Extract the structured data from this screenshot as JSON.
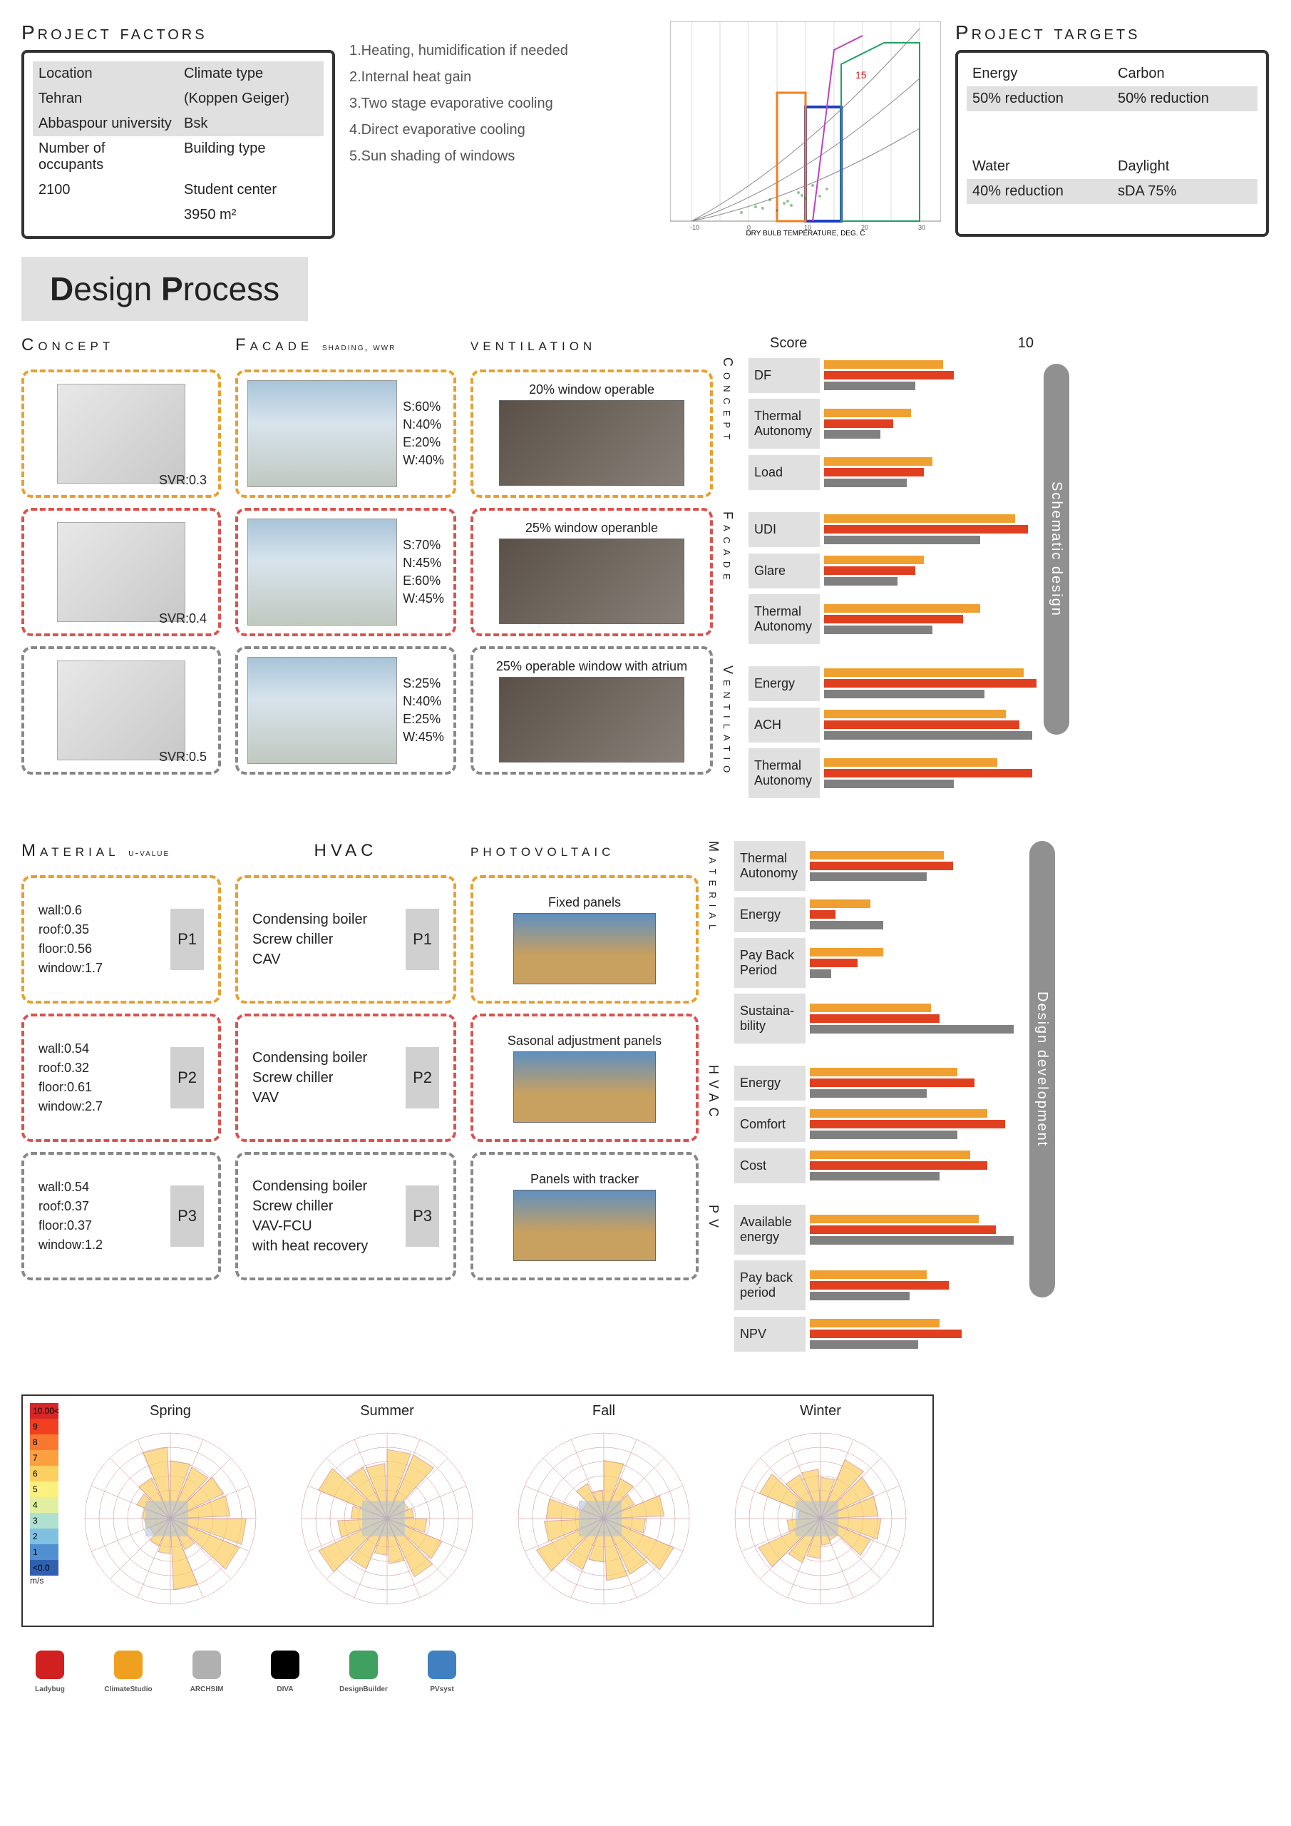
{
  "project_factors": {
    "title": "Project factors",
    "rows": {
      "location_h": "Location",
      "climate_h": "Climate type",
      "location_v": "Tehran",
      "climate_v": "(Koppen Geiger)",
      "loc2": "Abbaspour university",
      "clim2": "Bsk",
      "occ_h": "Number of occupants",
      "btype_h": "Building type",
      "occ_v": "2100",
      "btype_v": "Student center",
      "area": "3950 m²"
    }
  },
  "strategies": [
    "1.Heating, humidification if needed",
    "2.Internal heat gain",
    "3.Two stage evaporative cooling",
    "4.Direct evaporative cooling",
    "5.Sun shading of windows"
  ],
  "psych_axis": {
    "xlabel": "DRY BULB TEMPERATURE, DEG. C",
    "xmin": -10,
    "xmax": 40
  },
  "project_targets": {
    "title": "Project targets",
    "cells": {
      "energy_h": "Energy",
      "carbon_h": "Carbon",
      "energy_v": "50% reduction",
      "carbon_v": "50% reduction",
      "water_h": "Water",
      "daylight_h": "Daylight",
      "water_v": "40% reduction",
      "daylight_v": "sDA  75%"
    }
  },
  "design_process": {
    "d": "D",
    "p": "P",
    "rest1": "esign ",
    "rest2": "rocess"
  },
  "columns": {
    "concept": "Concept",
    "facade": "Facade",
    "facade_sub": "shading, wwr",
    "ventilation": "ventilation",
    "material": "Material",
    "material_sub": "u-value",
    "hvac": "HVAC",
    "pv": "photovoltaic"
  },
  "concept_items": [
    {
      "svr": "SVR:0.3",
      "c": "orange"
    },
    {
      "svr": "SVR:0.4",
      "c": "red"
    },
    {
      "svr": "SVR:0.5",
      "c": "grey"
    }
  ],
  "facade_items": [
    {
      "wwr": {
        "S": "S:60%",
        "N": "N:40%",
        "E": "E:20%",
        "W": "W:40%"
      },
      "c": "orange"
    },
    {
      "wwr": {
        "S": "S:70%",
        "N": "N:45%",
        "E": "E:60%",
        "W": "W:45%"
      },
      "c": "red"
    },
    {
      "wwr": {
        "S": "S:25%",
        "N": "N:40%",
        "E": "E:25%",
        "W": "W:45%"
      },
      "c": "grey"
    }
  ],
  "vent_items": [
    {
      "t": "20% window operable",
      "c": "orange"
    },
    {
      "t": "25% window operanble",
      "c": "red"
    },
    {
      "t": "25% operable window with atrium",
      "c": "grey"
    }
  ],
  "material_items": [
    {
      "wall": "wall:0.6",
      "roof": "roof:0.35",
      "floor": "floor:0.56",
      "win": "window:1.7",
      "p": "P1",
      "c": "orange"
    },
    {
      "wall": "wall:0.54",
      "roof": "roof:0.32",
      "floor": "floor:0.61",
      "win": "window:2.7",
      "p": "P2",
      "c": "red"
    },
    {
      "wall": "wall:0.54",
      "roof": "roof:0.37",
      "floor": "floor:0.37",
      "win": "window:1.2",
      "p": "P3",
      "c": "grey"
    }
  ],
  "hvac_items": [
    {
      "l1": "Condensing boiler",
      "l2": "Screw chiller",
      "l3": "CAV",
      "p": "P1",
      "c": "orange"
    },
    {
      "l1": "Condensing boiler",
      "l2": "Screw chiller",
      "l3": "VAV",
      "p": "P2",
      "c": "red"
    },
    {
      "l1": "Condensing boiler",
      "l2": "Screw chiller",
      "l3": "VAV-FCU",
      "l4": "with heat recovery",
      "p": "P3",
      "c": "grey"
    }
  ],
  "pv_items": [
    {
      "t": "Fixed panels",
      "c": "orange"
    },
    {
      "t": "Sasonal adjustment panels",
      "c": "red"
    },
    {
      "t": "Panels with tracker",
      "c": "grey"
    }
  ],
  "score": {
    "header": {
      "label": "Score",
      "max": "10"
    },
    "bar_colors": {
      "orange": "#f0a030",
      "red": "#e04020",
      "grey": "#808080"
    },
    "max_val": 10,
    "phases": {
      "schematic": "Schematic design",
      "devel": "Design development"
    },
    "groups": [
      {
        "vlabel": "Concept",
        "metrics": [
          {
            "name": "DF",
            "vals": [
              5.5,
              6.0,
              4.2
            ]
          },
          {
            "name": "Thermal Autonomy",
            "vals": [
              4.0,
              3.2,
              2.6
            ]
          },
          {
            "name": "Load",
            "vals": [
              5.0,
              4.6,
              3.8
            ]
          }
        ]
      },
      {
        "vlabel": "Facade",
        "metrics": [
          {
            "name": "UDI",
            "vals": [
              8.8,
              9.4,
              7.2
            ]
          },
          {
            "name": "Glare",
            "vals": [
              4.6,
              4.2,
              3.4
            ]
          },
          {
            "name": "Thermal Autonomy",
            "vals": [
              7.2,
              6.4,
              5.0
            ]
          }
        ]
      },
      {
        "vlabel": "Ventilatio",
        "metrics": [
          {
            "name": "Energy",
            "vals": [
              9.2,
              9.8,
              7.4
            ]
          },
          {
            "name": "ACH",
            "vals": [
              8.4,
              9.0,
              9.6
            ]
          },
          {
            "name": "Thermal Autonomy",
            "vals": [
              8.0,
              9.6,
              6.0
            ]
          }
        ]
      },
      {
        "vlabel": "Material",
        "metrics": [
          {
            "name": "Thermal Autonomy",
            "vals": [
              6.2,
              6.6,
              5.4
            ]
          },
          {
            "name": "Energy",
            "vals": [
              2.8,
              1.2,
              3.4
            ]
          },
          {
            "name": "Pay Back Period",
            "vals": [
              3.4,
              2.2,
              1.0
            ]
          },
          {
            "name": "Sustaina-bility",
            "vals": [
              5.6,
              6.0,
              9.4
            ]
          }
        ]
      },
      {
        "vlabel": "HVAC",
        "metrics": [
          {
            "name": "Energy",
            "vals": [
              6.8,
              7.6,
              5.4
            ]
          },
          {
            "name": "Comfort",
            "vals": [
              8.2,
              9.0,
              6.8
            ]
          },
          {
            "name": "Cost",
            "vals": [
              7.4,
              8.2,
              6.0
            ]
          }
        ]
      },
      {
        "vlabel": "PV",
        "metrics": [
          {
            "name": "Available energy",
            "vals": [
              7.8,
              8.6,
              9.4
            ]
          },
          {
            "name": "Pay back period",
            "vals": [
              5.4,
              6.4,
              4.6
            ]
          },
          {
            "name": "NPV",
            "vals": [
              6.0,
              7.0,
              5.0
            ]
          }
        ]
      }
    ]
  },
  "seasonal": {
    "legend": [
      {
        "v": "10.00<",
        "c": "#d62728"
      },
      {
        "v": "9",
        "c": "#f04020"
      },
      {
        "v": "8",
        "c": "#f87830"
      },
      {
        "v": "7",
        "c": "#fca040"
      },
      {
        "v": "6",
        "c": "#fcd060"
      },
      {
        "v": "5",
        "c": "#fcf080"
      },
      {
        "v": "4",
        "c": "#e0f0a0"
      },
      {
        "v": "3",
        "c": "#b0e0d0"
      },
      {
        "v": "2",
        "c": "#80c0e0"
      },
      {
        "v": "1",
        "c": "#5090d0"
      },
      {
        "v": "<0.0",
        "c": "#3060b0"
      }
    ],
    "unit": "m/s",
    "seasons": [
      "Spring",
      "Summer",
      "Fall",
      "Winter"
    ]
  },
  "logos": [
    "Ladybug",
    "ClimateStudio",
    "ARCHSIM",
    "DIVA",
    "DesignBuilder",
    "PVsyst"
  ]
}
